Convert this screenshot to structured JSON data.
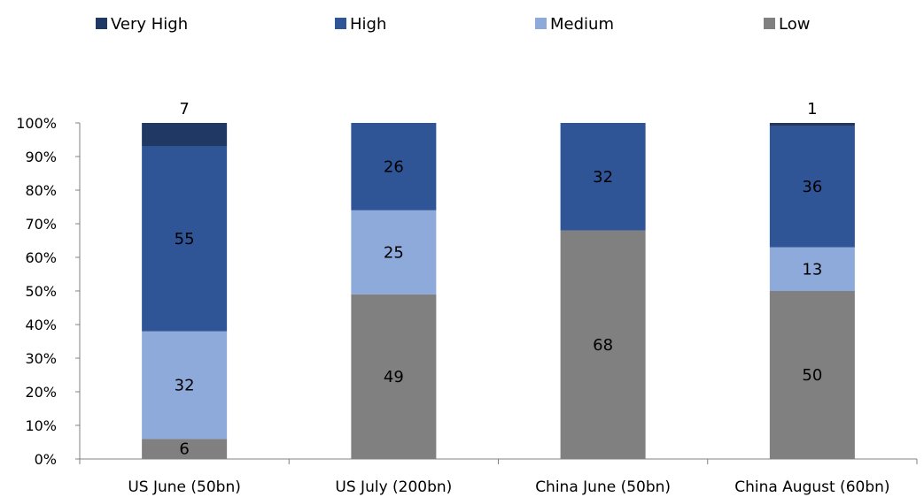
{
  "chart_data": {
    "type": "bar",
    "stacked": true,
    "percent_stacked": true,
    "categories": [
      "US June (50bn)",
      "US July (200bn)",
      "China June (50bn)",
      "China August (60bn)"
    ],
    "series": [
      {
        "name": "Low",
        "color": "#808080",
        "values": [
          6,
          49,
          68,
          50
        ],
        "labels": [
          "6",
          "49",
          "68",
          "50"
        ]
      },
      {
        "name": "Medium",
        "color": "#8eaadb",
        "values": [
          32,
          25,
          0,
          13
        ],
        "labels": [
          "32",
          "25",
          "",
          "13"
        ]
      },
      {
        "name": "High",
        "color": "#2f5597",
        "values": [
          55,
          26,
          32,
          36
        ],
        "labels": [
          "55",
          "26",
          "32",
          "36"
        ]
      },
      {
        "name": "Very High",
        "color": "#1f3864",
        "values": [
          7,
          0,
          0,
          1
        ],
        "labels": [
          "7",
          "",
          "",
          "1"
        ]
      }
    ],
    "legend": {
      "placement": "top",
      "order": [
        "Very High",
        "High",
        "Medium",
        "Low"
      ]
    },
    "yticks": [
      "0%",
      "10%",
      "20%",
      "30%",
      "40%",
      "50%",
      "60%",
      "70%",
      "80%",
      "90%",
      "100%"
    ],
    "ylim": [
      0,
      100
    ],
    "grid": false,
    "xlabel": "",
    "ylabel": ""
  }
}
